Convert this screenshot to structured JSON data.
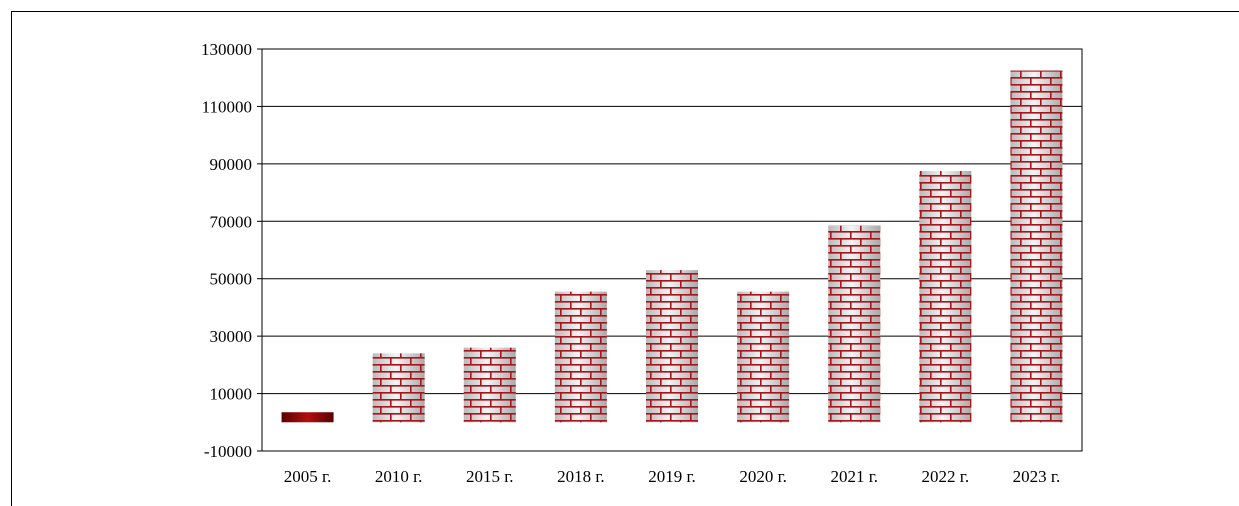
{
  "chart_data": {
    "type": "bar",
    "categories": [
      "2005 г.",
      "2010 г.",
      "2015 г.",
      "2018 г.",
      "2019 г.",
      "2020 г.",
      "2021 г.",
      "2022 г.",
      "2023 г."
    ],
    "values": [
      3500,
      24000,
      26000,
      45500,
      53000,
      45500,
      68500,
      87500,
      122500
    ],
    "ylim": [
      -10000,
      130000
    ],
    "yticks": [
      -10000,
      10000,
      30000,
      50000,
      70000,
      90000,
      110000,
      130000
    ],
    "ytick_labels": [
      "-10000",
      "10000",
      "30000",
      "50000",
      "70000",
      "90000",
      "110000",
      "130000"
    ],
    "grid": true,
    "legend": "none",
    "colors": {
      "brick": "#a8141c",
      "mortar": "#eeeeee",
      "first_bar": "#8b0000"
    }
  }
}
